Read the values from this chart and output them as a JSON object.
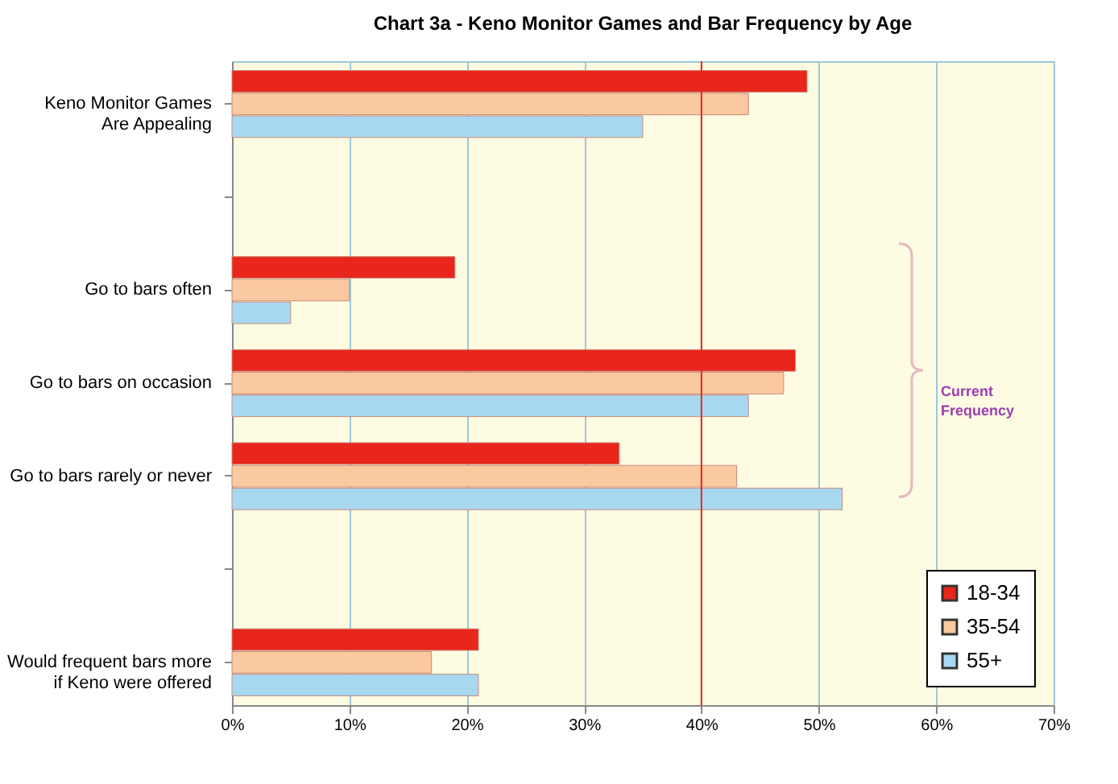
{
  "chart_data": {
    "type": "bar",
    "orientation": "horizontal",
    "title": "Chart 3a - Keno Monitor Games and Bar Frequency by Age",
    "categories": [
      "Keno Monitor Games Are Appealing",
      null,
      "Go to bars often",
      "Go to bars on occasion",
      "Go to bars rarely or never",
      null,
      "Would frequent bars more if Keno were offered"
    ],
    "series": [
      {
        "name": "18-34",
        "color": "#e8261c",
        "values": [
          49,
          null,
          19,
          48,
          33,
          null,
          21
        ]
      },
      {
        "name": "35-54",
        "color": "#fbc9a0",
        "values": [
          44,
          null,
          10,
          47,
          43,
          null,
          17
        ]
      },
      {
        "name": "55+",
        "color": "#a8d8f0",
        "values": [
          35,
          null,
          5,
          44,
          52,
          null,
          21
        ]
      }
    ],
    "xlim": [
      0,
      70
    ],
    "xticks": [
      {
        "value": 0,
        "label": "0%"
      },
      {
        "value": 10,
        "label": "10%"
      },
      {
        "value": 20,
        "label": "20%"
      },
      {
        "value": 30,
        "label": "30%"
      },
      {
        "value": 40,
        "label": "40%"
      },
      {
        "value": 50,
        "label": "50%"
      },
      {
        "value": 60,
        "label": "60%"
      },
      {
        "value": 70,
        "label": "70%"
      }
    ],
    "ref_lines": [
      {
        "axis": "x",
        "value": 40,
        "color": "#e8261c"
      }
    ],
    "annotations": [
      "Current Frequency"
    ],
    "grid": "x",
    "legend": "bottom right"
  }
}
